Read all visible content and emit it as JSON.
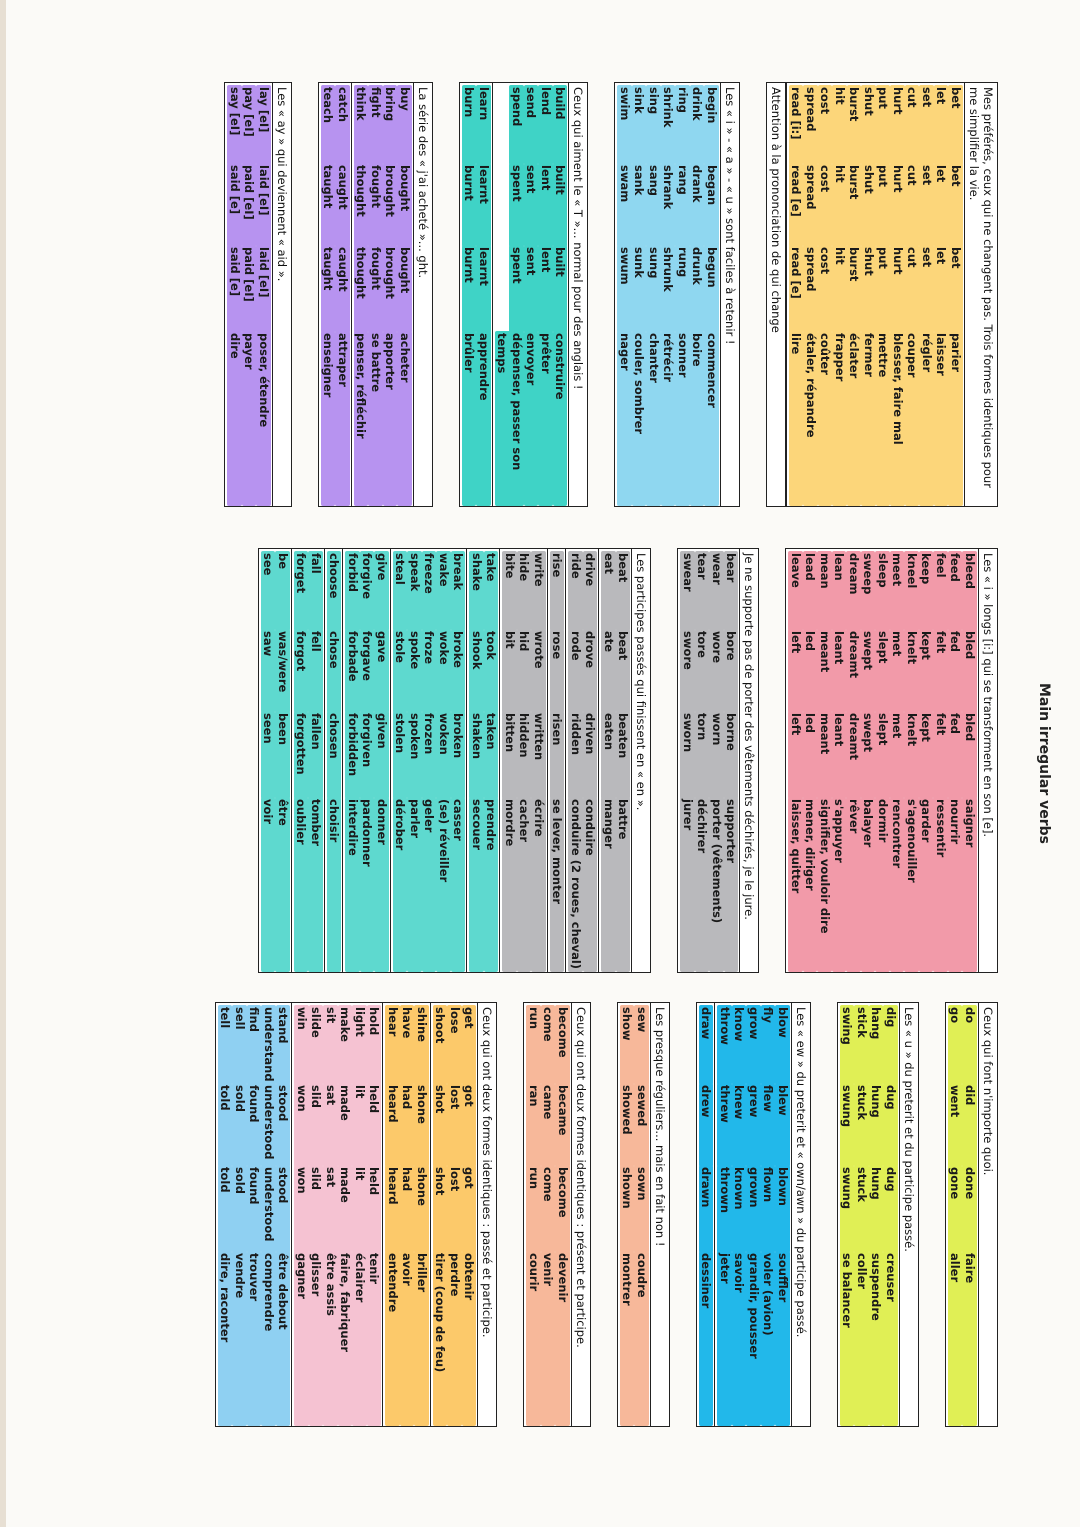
{
  "page": {
    "title": "Main irregular verbs"
  },
  "col1": {
    "block1": {
      "header": "Mes préférés, ceux qui ne changent pas. Trois formes identiques pour me simplifier la vie.",
      "rows": [
        [
          "bet",
          "bet",
          "bet",
          "parier"
        ],
        [
          "let",
          "let",
          "let",
          "laisser"
        ],
        [
          "set",
          "set",
          "set",
          "régler"
        ],
        [
          "cut",
          "cut",
          "cut",
          "couper"
        ],
        [
          "hurt",
          "hurt",
          "hurt",
          "blesser, faire mal"
        ],
        [
          "put",
          "put",
          "put",
          "mettre"
        ],
        [
          "shut",
          "shut",
          "shut",
          "fermer"
        ],
        [
          "burst",
          "burst",
          "burst",
          "éclater"
        ],
        [
          "hit",
          "hit",
          "hit",
          "frapper"
        ],
        [
          "cost",
          "cost",
          "cost",
          "coûter"
        ],
        [
          "spread",
          "spread",
          "spread",
          "étaler, répandre"
        ],
        [
          "read [i:]",
          "read [e]",
          "read [e]",
          "lire"
        ]
      ],
      "footer": "Attention à la prononciation de          qui change"
    },
    "block2": {
      "header": "Les « i » - « a » - « u » sont faciles à retenir !",
      "rows": [
        [
          "begin",
          "began",
          "begun",
          "commencer"
        ],
        [
          "drink",
          "drank",
          "drunk",
          "boire"
        ],
        [
          "ring",
          "rang",
          "rung",
          "sonner"
        ],
        [
          "shrink",
          "shrank",
          "shrunk",
          "rétrécir"
        ],
        [
          "sing",
          "sang",
          "sung",
          "chanter"
        ],
        [
          "sink",
          "sank",
          "sunk",
          "couler, sombrer"
        ],
        [
          "swim",
          "swam",
          "swum",
          "nager"
        ]
      ]
    },
    "block3": {
      "header": "Ceux qui aiment le « T »... normal pour des anglais !",
      "groups": [
        [
          [
            "build",
            "built",
            "built",
            "construire"
          ],
          [
            "lend",
            "lent",
            "lent",
            "prêter"
          ],
          [
            "send",
            "sent",
            "sent",
            "envoyer"
          ],
          [
            "spend",
            "spent",
            "spent",
            "dépenser, passer son temps"
          ]
        ],
        [
          [
            "learn",
            "learnt",
            "learnt",
            "apprendre"
          ],
          [
            "burn",
            "burnt",
            "burnt",
            "brûler"
          ]
        ]
      ]
    },
    "block4": {
      "header": "La série des « j'ai acheté »... ght.",
      "groups": [
        [
          [
            "buy",
            "bought",
            "bought",
            "acheter"
          ],
          [
            "bring",
            "brought",
            "brought",
            "apporter"
          ],
          [
            "fight",
            "fought",
            "fought",
            "se battre"
          ],
          [
            "think",
            "thought",
            "thought",
            "penser, réfléchir"
          ]
        ],
        [
          [
            "catch",
            "caught",
            "caught",
            "attraper"
          ],
          [
            "teach",
            "taught",
            "taught",
            "enseigner"
          ]
        ]
      ]
    },
    "block5": {
      "header": "Les « ay » qui deviennent « aid ».",
      "rows": [
        [
          "lay [eI]",
          "laid [eI]",
          "laid [eI]",
          "poser, étendre"
        ],
        [
          "pay [eI]",
          "paid [eI]",
          "paid [eI]",
          "payer"
        ],
        [
          "say [eI]",
          "said [e]",
          "said [e]",
          "dire"
        ]
      ]
    }
  },
  "col2": {
    "block1": {
      "header": "Les « i » longs [i:] qui se transforment en son [e].",
      "rows": [
        [
          "bleed",
          "bled",
          "bled",
          "saigner"
        ],
        [
          "feed",
          "fed",
          "fed",
          "nourrir"
        ],
        [
          "feel",
          "felt",
          "felt",
          "ressentir"
        ],
        [
          "keep",
          "kept",
          "kept",
          "garder"
        ],
        [
          "kneel",
          "knelt",
          "knelt",
          "s'agenouiller"
        ],
        [
          "meet",
          "met",
          "met",
          "rencontrer"
        ],
        [
          "sleep",
          "slept",
          "slept",
          "dormir"
        ],
        [
          "sweep",
          "swept",
          "swept",
          "balayer"
        ],
        [
          "dream",
          "dreamt",
          "dreamt",
          "rêver"
        ],
        [
          "lean",
          "leant",
          "leant",
          "s'appuyer"
        ],
        [
          "mean",
          "meant",
          "meant",
          "signifier, vouloir dire"
        ],
        [
          "lead",
          "led",
          "led",
          "mener, diriger"
        ],
        [
          "leave",
          "left",
          "left",
          "laisser, quitter"
        ]
      ]
    },
    "block2": {
      "header": "Je ne supporte pas de porter des vêtements déchirés, je le jure.",
      "rows": [
        [
          "bear",
          "bore",
          "borne",
          "supporter"
        ],
        [
          "wear",
          "wore",
          "worn",
          "porter (vêtements)"
        ],
        [
          "tear",
          "tore",
          "torn",
          "déchirer"
        ],
        [
          "swear",
          "swore",
          "sworn",
          "jurer"
        ]
      ]
    },
    "block3": {
      "header": "Les participes passés qui finissent en « en ».",
      "groups": [
        {
          "tone": "grey",
          "rows": [
            [
              "beat",
              "beat",
              "beaten",
              "battre"
            ],
            [
              "eat",
              "ate",
              "eaten",
              "manger"
            ]
          ]
        },
        {
          "tone": "grey",
          "rows": [
            [
              "drive",
              "drove",
              "driven",
              "conduire"
            ],
            [
              "ride",
              "rode",
              "ridden",
              "conduire (2 roues, cheval)"
            ]
          ]
        },
        {
          "tone": "grey",
          "rows": [
            [
              "rise",
              "rose",
              "risen",
              "se lever, monter"
            ]
          ]
        },
        {
          "tone": "grey",
          "rows": [
            [
              "write",
              "wrote",
              "written",
              "écrire"
            ],
            [
              "hide",
              "hid",
              "hidden",
              "cacher"
            ],
            [
              "bite",
              "bit",
              "bitten",
              "mordre"
            ]
          ]
        },
        {
          "tone": "teal2",
          "rows": [
            [
              "take",
              "took",
              "taken",
              "prendre"
            ],
            [
              "shake",
              "shook",
              "shaken",
              "secouer"
            ]
          ]
        },
        {
          "tone": "teal2",
          "rows": [
            [
              "break",
              "broke",
              "broken",
              "casser"
            ],
            [
              "wake",
              "woke",
              "woken",
              "(se) réveiller"
            ],
            [
              "freeze",
              "froze",
              "frozen",
              "geler"
            ],
            [
              "speak",
              "spoke",
              "spoken",
              "parler"
            ],
            [
              "steal",
              "stole",
              "stolen",
              "dérober"
            ]
          ]
        },
        {
          "tone": "teal2",
          "rows": [
            [
              "give",
              "gave",
              "given",
              "donner"
            ],
            [
              "forgive",
              "forgave",
              "forgiven",
              "pardonner"
            ],
            [
              "forbid",
              "forbade",
              "forbidden",
              "interdire"
            ]
          ]
        },
        {
          "tone": "teal2",
          "rows": [
            [
              "choose",
              "chose",
              "chosen",
              "choisir"
            ]
          ]
        },
        {
          "tone": "teal2",
          "rows": [
            [
              "fall",
              "fell",
              "fallen",
              "tomber"
            ],
            [
              "forget",
              "forgot",
              "forgotten",
              "oublier"
            ]
          ]
        },
        {
          "tone": "teal2",
          "rows": [
            [
              "be",
              "was/were",
              "been",
              "être"
            ],
            [
              "see",
              "saw",
              "seen",
              "voir"
            ]
          ]
        }
      ]
    }
  },
  "col3": {
    "block1": {
      "header": "Ceux qui font n'importe quoi.",
      "rows": [
        [
          "do",
          "did",
          "done",
          "faire"
        ],
        [
          "go",
          "went",
          "gone",
          "aller"
        ]
      ]
    },
    "block2": {
      "header": "Les « u » du preterit et du participe passé.",
      "rows": [
        [
          "dig",
          "dug",
          "dug",
          "creuser"
        ],
        [
          "hang",
          "hung",
          "hung",
          "suspendre"
        ],
        [
          "stick",
          "stuck",
          "stuck",
          "coller"
        ],
        [
          "swing",
          "swung",
          "swung",
          "se balancer"
        ]
      ]
    },
    "block3": {
      "header": "Les « ew » du preterit et « own/awn » du participe passé.",
      "groups": [
        [
          [
            "blow",
            "blew",
            "blown",
            "souffler"
          ],
          [
            "fly",
            "flew",
            "flown",
            "voler (avion)"
          ],
          [
            "grow",
            "grew",
            "grown",
            "grandir, pousser"
          ],
          [
            "know",
            "knew",
            "known",
            "savoir"
          ],
          [
            "throw",
            "threw",
            "thrown",
            "jeter"
          ]
        ],
        [
          [
            "draw",
            "drew",
            "drawn",
            "dessiner"
          ]
        ]
      ]
    },
    "block4": {
      "header": "Les presque réguliers... mais en fait non !",
      "rows": [
        [
          "sew",
          "sewed",
          "sown",
          "coudre"
        ],
        [
          "show",
          "showed",
          "shown",
          "montrer"
        ]
      ]
    },
    "block5": {
      "header": "Ceux qui ont deux formes identiques : présent et participe.",
      "rows": [
        [
          "become",
          "became",
          "become",
          "devenir"
        ],
        [
          "come",
          "came",
          "come",
          "venir"
        ],
        [
          "run",
          "ran",
          "run",
          "courir"
        ]
      ]
    },
    "block6": {
      "header": "Ceux qui ont deux formes identiques : passé et participe.",
      "groups": [
        {
          "tone": "gold",
          "rows": [
            [
              "get",
              "got",
              "got",
              "obtenir"
            ],
            [
              "lose",
              "lost",
              "lost",
              "perdre"
            ],
            [
              "shoot",
              "shot",
              "shot",
              "tirer (coup de feu)"
            ]
          ]
        },
        {
          "tone": "gold",
          "rows": [
            [
              "shine",
              "shone",
              "shone",
              "briller"
            ],
            [
              "have",
              "had",
              "had",
              "avoir"
            ],
            [
              "hear",
              "heard",
              "heard",
              "entendre"
            ]
          ]
        },
        {
          "tone": "rose",
          "rows": [
            [
              "hold",
              "held",
              "held",
              "tenir"
            ],
            [
              "light",
              "lit",
              "lit",
              "éclairer"
            ],
            [
              "make",
              "made",
              "made",
              "faire, fabriquer"
            ],
            [
              "sit",
              "sat",
              "sat",
              "être assis"
            ],
            [
              "slide",
              "slid",
              "slid",
              "glisser"
            ],
            [
              "win",
              "won",
              "won",
              "gagner"
            ]
          ]
        },
        {
          "tone": "sky",
          "rows": [
            [
              "stand",
              "stood",
              "stood",
              "être debout"
            ],
            [
              "understand",
              "understood",
              "understood",
              "comprendre"
            ],
            [
              "find",
              "found",
              "found",
              "trouver"
            ],
            [
              "sell",
              "sold",
              "sold",
              "vendre"
            ],
            [
              "tell",
              "told",
              "told",
              "dire, raconter"
            ]
          ]
        }
      ]
    }
  }
}
